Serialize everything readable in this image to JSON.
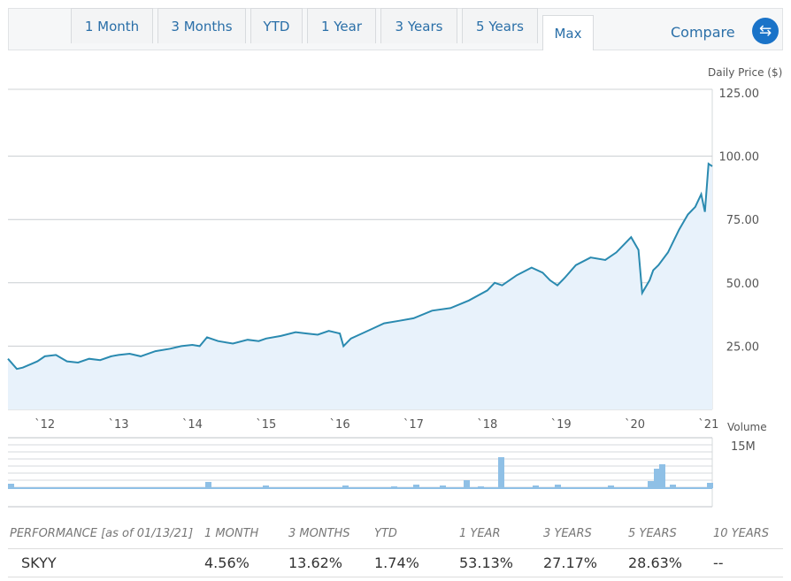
{
  "tabs": [
    {
      "label": "1 Month"
    },
    {
      "label": "3 Months"
    },
    {
      "label": "YTD"
    },
    {
      "label": "1 Year"
    },
    {
      "label": "3 Years"
    },
    {
      "label": "5 Years"
    },
    {
      "label": "Max",
      "active": true
    }
  ],
  "compare_label": "Compare",
  "colors": {
    "line": "#2a8ab0",
    "area": "#e8f2fb",
    "volume": "#8fc0e6",
    "accent": "#1a73c8"
  },
  "chart_data": [
    {
      "type": "area",
      "ylabel": "Daily Price ($)",
      "ylim": [
        0,
        125
      ],
      "yticks": [
        25,
        50,
        75,
        100,
        125
      ],
      "ytick_labels": [
        "25.00",
        "50.00",
        "75.00",
        "100.00",
        "125.00"
      ],
      "xlim": [
        2011.5,
        2021.05
      ],
      "xticks": [
        2012,
        2013,
        2014,
        2015,
        2016,
        2017,
        2018,
        2019,
        2020,
        2021
      ],
      "xtick_labels": [
        "`12",
        "`13",
        "`14",
        "`15",
        "`16",
        "`17",
        "`18",
        "`19",
        "`20",
        "`21"
      ],
      "series": [
        {
          "x": [
            2011.5,
            2011.62,
            2011.7,
            2011.82,
            2011.9,
            2012.0,
            2012.15,
            2012.3,
            2012.45,
            2012.6,
            2012.75,
            2012.9,
            2013.0,
            2013.15,
            2013.3,
            2013.5,
            2013.7,
            2013.85,
            2014.0,
            2014.1,
            2014.2,
            2014.35,
            2014.55,
            2014.75,
            2014.9,
            2015.0,
            2015.2,
            2015.4,
            2015.55,
            2015.7,
            2015.85,
            2016.0,
            2016.05,
            2016.15,
            2016.3,
            2016.45,
            2016.6,
            2016.8,
            2017.0,
            2017.25,
            2017.5,
            2017.75,
            2018.0,
            2018.1,
            2018.2,
            2018.4,
            2018.6,
            2018.75,
            2018.85,
            2018.95,
            2019.05,
            2019.2,
            2019.4,
            2019.6,
            2019.75,
            2019.95,
            2020.05,
            2020.1,
            2020.2,
            2020.25,
            2020.32,
            2020.45,
            2020.6,
            2020.72,
            2020.82,
            2020.9,
            2020.95,
            2021.0,
            2021.05
          ],
          "values": [
            20,
            16,
            16.5,
            18,
            19,
            21,
            21.5,
            19,
            18.5,
            20,
            19.5,
            21,
            21.5,
            22,
            21,
            23,
            24,
            25,
            25.5,
            25,
            28.5,
            27,
            26,
            27.5,
            27,
            28,
            29,
            30.5,
            30,
            29.5,
            31,
            30,
            25,
            28,
            30,
            32,
            34,
            35,
            36,
            39,
            40,
            43,
            47,
            50,
            49,
            53,
            56,
            54,
            51,
            49,
            52,
            57,
            60,
            59,
            62,
            68,
            63,
            46,
            51,
            55,
            57,
            62,
            71,
            77,
            80,
            85,
            78,
            97,
            96
          ]
        }
      ]
    },
    {
      "type": "bar",
      "ylabel": "Volume",
      "yticks": [
        15
      ],
      "ytick_labels": [
        "15M"
      ]
    }
  ],
  "performance": {
    "header_label": "PERFORMANCE [as of 01/13/21]",
    "columns": [
      "1 MONTH",
      "3 MONTHS",
      "YTD",
      "1 YEAR",
      "3 YEARS",
      "5 YEARS",
      "10 YEARS"
    ],
    "rows": [
      {
        "ticker": "SKYY",
        "values": [
          "4.56%",
          "13.62%",
          "1.74%",
          "53.13%",
          "27.17%",
          "28.63%",
          "--"
        ]
      }
    ]
  }
}
